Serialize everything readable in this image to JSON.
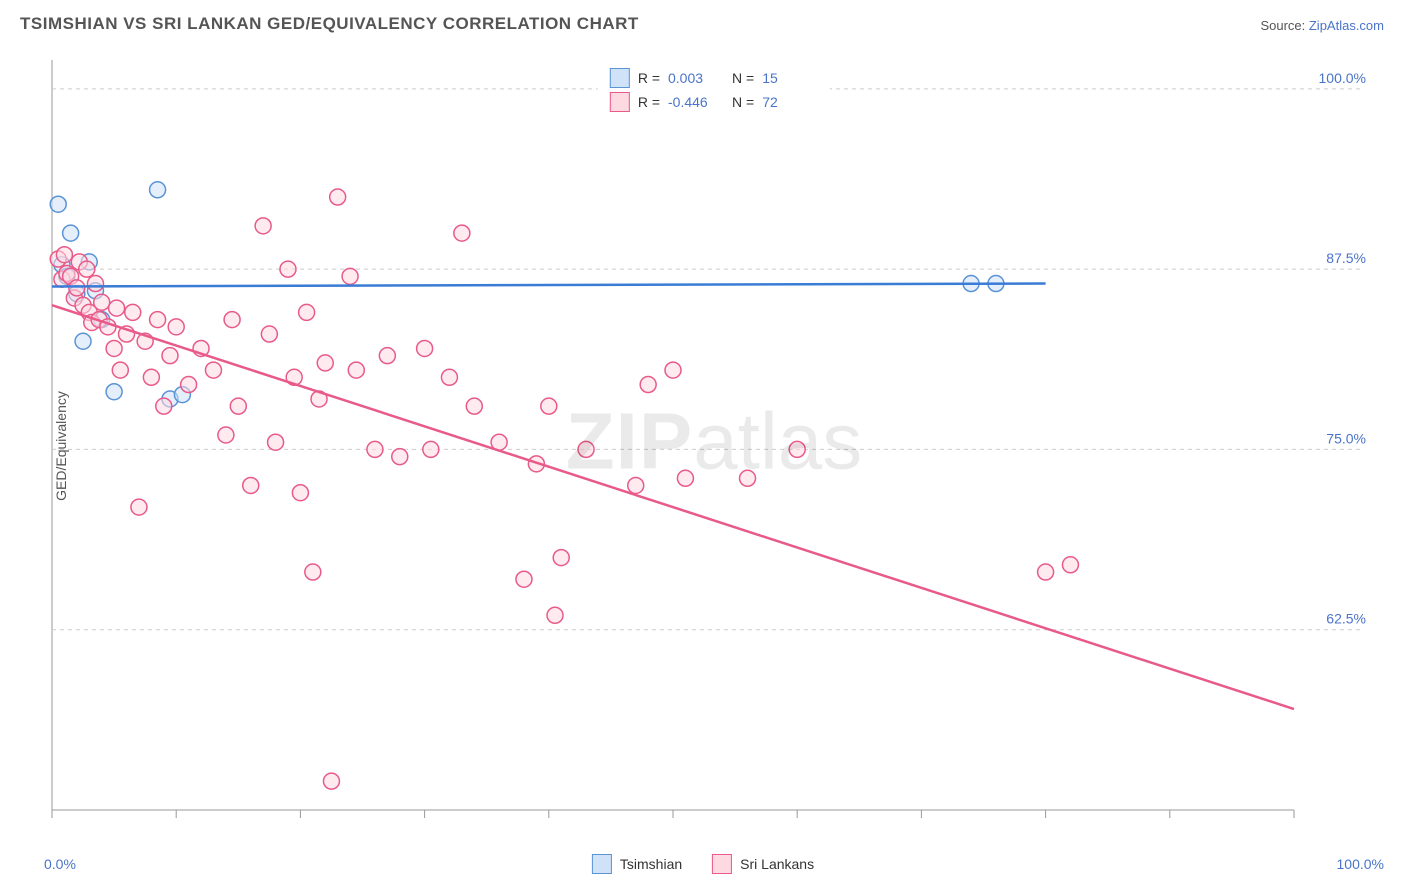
{
  "title": "TSIMSHIAN VS SRI LANKAN GED/EQUIVALENCY CORRELATION CHART",
  "source_prefix": "Source: ",
  "source_link": "ZipAtlas.com",
  "y_axis_label": "GED/Equivalency",
  "watermark_zip": "ZIP",
  "watermark_atlas": "atlas",
  "chart": {
    "type": "scatter",
    "xlim": [
      0,
      100
    ],
    "ylim": [
      50,
      102
    ],
    "x_ticks": [
      0,
      10,
      20,
      30,
      40,
      50,
      60,
      70,
      80,
      90,
      100
    ],
    "y_gridlines": [
      62.5,
      75.0,
      87.5,
      100.0
    ],
    "y_tick_labels": [
      "62.5%",
      "75.0%",
      "87.5%",
      "100.0%"
    ],
    "x_axis_end_labels": [
      "0.0%",
      "100.0%"
    ],
    "background_color": "#ffffff",
    "grid_color": "#cccccc",
    "grid_dash": "4 4",
    "axis_color": "#999999",
    "marker_radius": 8,
    "marker_stroke_width": 1.5,
    "line_width": 2.5,
    "title_fontsize": 17,
    "label_fontsize": 14
  },
  "series": [
    {
      "name": "Tsimshian",
      "fill": "#cfe2f8",
      "stroke": "#5a93d6",
      "line_color": "#3a7bd5",
      "R": "0.003",
      "N": "15",
      "points": [
        [
          0.5,
          92.0
        ],
        [
          0.8,
          87.8
        ],
        [
          1.2,
          87.0
        ],
        [
          1.5,
          90.0
        ],
        [
          2.0,
          85.8
        ],
        [
          2.5,
          82.5
        ],
        [
          3.0,
          88.0
        ],
        [
          3.5,
          86.0
        ],
        [
          4.0,
          84.0
        ],
        [
          5.0,
          79.0
        ],
        [
          8.5,
          93.0
        ],
        [
          9.5,
          78.5
        ],
        [
          10.5,
          78.8
        ],
        [
          74.0,
          86.5
        ],
        [
          76.0,
          86.5
        ]
      ],
      "regression": {
        "x1": 0,
        "y1": 86.3,
        "x2": 80,
        "y2": 86.5
      }
    },
    {
      "name": "Sri Lankans",
      "fill": "#fdd9e2",
      "stroke": "#e85a8a",
      "line_color": "#e85a8a",
      "R": "-0.446",
      "N": "72",
      "points": [
        [
          0.5,
          88.2
        ],
        [
          0.8,
          86.8
        ],
        [
          1.0,
          88.5
        ],
        [
          1.2,
          87.2
        ],
        [
          1.5,
          87.0
        ],
        [
          1.8,
          85.5
        ],
        [
          2.0,
          86.2
        ],
        [
          2.2,
          88.0
        ],
        [
          2.5,
          85.0
        ],
        [
          2.8,
          87.5
        ],
        [
          3.0,
          84.5
        ],
        [
          3.2,
          83.8
        ],
        [
          3.5,
          86.5
        ],
        [
          3.8,
          84.0
        ],
        [
          4.0,
          85.2
        ],
        [
          4.5,
          83.5
        ],
        [
          5.0,
          82.0
        ],
        [
          5.2,
          84.8
        ],
        [
          5.5,
          80.5
        ],
        [
          6.0,
          83.0
        ],
        [
          6.5,
          84.5
        ],
        [
          7.0,
          71.0
        ],
        [
          7.5,
          82.5
        ],
        [
          8.0,
          80.0
        ],
        [
          8.5,
          84.0
        ],
        [
          9.0,
          78.0
        ],
        [
          9.5,
          81.5
        ],
        [
          10.0,
          83.5
        ],
        [
          11.0,
          79.5
        ],
        [
          12.0,
          82.0
        ],
        [
          13.0,
          80.5
        ],
        [
          14.0,
          76.0
        ],
        [
          14.5,
          84.0
        ],
        [
          15.0,
          78.0
        ],
        [
          16.0,
          72.5
        ],
        [
          17.0,
          90.5
        ],
        [
          17.5,
          83.0
        ],
        [
          18.0,
          75.5
        ],
        [
          19.0,
          87.5
        ],
        [
          19.5,
          80.0
        ],
        [
          20.0,
          72.0
        ],
        [
          20.5,
          84.5
        ],
        [
          21.0,
          66.5
        ],
        [
          21.5,
          78.5
        ],
        [
          22.0,
          81.0
        ],
        [
          22.5,
          52.0
        ],
        [
          23.0,
          92.5
        ],
        [
          24.0,
          87.0
        ],
        [
          24.5,
          80.5
        ],
        [
          26.0,
          75.0
        ],
        [
          27.0,
          81.5
        ],
        [
          28.0,
          74.5
        ],
        [
          30.0,
          82.0
        ],
        [
          30.5,
          75.0
        ],
        [
          32.0,
          80.0
        ],
        [
          33.0,
          90.0
        ],
        [
          34.0,
          78.0
        ],
        [
          36.0,
          75.5
        ],
        [
          38.0,
          66.0
        ],
        [
          39.0,
          74.0
        ],
        [
          40.0,
          78.0
        ],
        [
          40.5,
          63.5
        ],
        [
          41.0,
          67.5
        ],
        [
          43.0,
          75.0
        ],
        [
          47.0,
          72.5
        ],
        [
          48.0,
          79.5
        ],
        [
          50.0,
          80.5
        ],
        [
          51.0,
          73.0
        ],
        [
          56.0,
          73.0
        ],
        [
          60.0,
          75.0
        ],
        [
          80.0,
          66.5
        ],
        [
          82.0,
          67.0
        ]
      ],
      "regression": {
        "x1": 0,
        "y1": 85.0,
        "x2": 100,
        "y2": 57.0
      }
    }
  ],
  "legend_bottom": [
    {
      "label": "Tsimshian",
      "fill": "#cfe2f8",
      "stroke": "#5a93d6"
    },
    {
      "label": "Sri Lankans",
      "fill": "#fdd9e2",
      "stroke": "#e85a8a"
    }
  ],
  "legend_top_labels": {
    "R": "R =",
    "N": "N ="
  }
}
